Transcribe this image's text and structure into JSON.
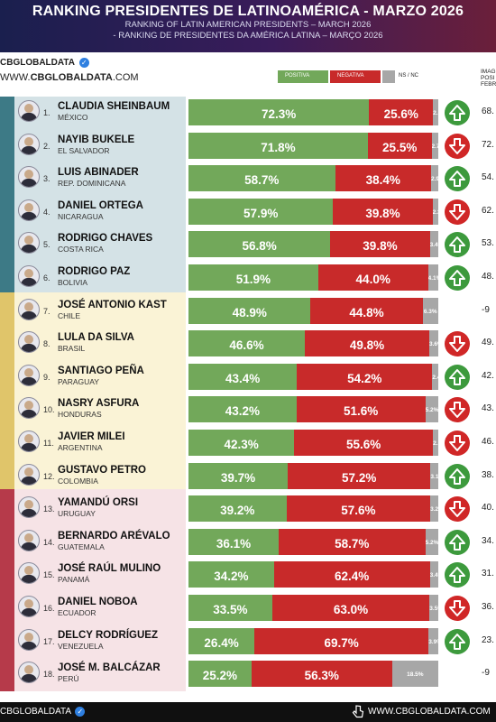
{
  "header": {
    "title": "RANKING PRESIDENTES DE LATINOAMÉRICA - MARZO 2026",
    "subtitle_en": "RANKING OF LATIN AMERICAN PRESIDENTS – MARCH 2026",
    "subtitle_pt": "- RANKING DE PRESIDENTES DA AMÉRICA LATINA – MARÇO 2026"
  },
  "brand": {
    "handle": "CBGLOBALDATA",
    "url_prefix": "WWW.",
    "url_bold": "CBGLOBALDATA",
    "url_suffix": ".COM"
  },
  "corner_label": "IMAG POSI FEBR",
  "footer": {
    "handle": "CBGLOBALDATA",
    "url": "WWW.CBGLOBALDATA.COM"
  },
  "colors": {
    "positive": "#72a85a",
    "negative": "#c82a2a",
    "ns": "#a7a7a7",
    "arrow_up": "#3d9a3d",
    "arrow_down": "#d02727",
    "group_top_bar": "#3d7a86",
    "group_top_bg": "#d4e2e6",
    "group_mid_bar": "#e0c56a",
    "group_mid_bg": "#faf3d6",
    "group_bot_bar": "#b63a4a",
    "group_bot_bg": "#f6e3e6"
  },
  "chart_data": {
    "type": "bar",
    "stacked": true,
    "orientation": "horizontal",
    "legend": {
      "position": "top-right",
      "entries": [
        "POSITIVA",
        "NEGATIVA",
        "NS / NC"
      ]
    },
    "rows": [
      {
        "rank": "1.",
        "name": "CLAUDIA SHEINBAUM",
        "country": "MÉXICO",
        "positive": 72.3,
        "negative": 25.6,
        "ns": 2.1,
        "positive_label": "72.3%",
        "negative_label": "25.6%",
        "ns_label": "2.1%",
        "trend": "up",
        "feb": "68."
      },
      {
        "rank": "2.",
        "name": "NAYIB BUKELE",
        "country": "EL SALVADOR",
        "positive": 71.8,
        "negative": 25.5,
        "ns": 2.7,
        "positive_label": "71.8%",
        "negative_label": "25.5%",
        "ns_label": "2.7%",
        "trend": "down",
        "feb": "72."
      },
      {
        "rank": "3.",
        "name": "LUIS ABINADER",
        "country": "REP. DOMINICANA",
        "positive": 58.7,
        "negative": 38.4,
        "ns": 2.9,
        "positive_label": "58.7%",
        "negative_label": "38.4%",
        "ns_label": "2.9%",
        "trend": "up",
        "feb": "54."
      },
      {
        "rank": "4.",
        "name": "DANIEL ORTEGA",
        "country": "NICARAGUA",
        "positive": 57.9,
        "negative": 39.8,
        "ns": 2.3,
        "positive_label": "57.9%",
        "negative_label": "39.8%",
        "ns_label": "2.3%",
        "trend": "down",
        "feb": "62."
      },
      {
        "rank": "5.",
        "name": "RODRIGO CHAVES",
        "country": "COSTA RICA",
        "positive": 56.8,
        "negative": 39.8,
        "ns": 3.4,
        "positive_label": "56.8%",
        "negative_label": "39.8%",
        "ns_label": "3.4%",
        "trend": "up",
        "feb": "53."
      },
      {
        "rank": "6.",
        "name": "RODRIGO PAZ",
        "country": "BOLIVIA",
        "positive": 51.9,
        "negative": 44.0,
        "ns": 4.1,
        "positive_label": "51.9%",
        "negative_label": "44.0%",
        "ns_label": "4.1%",
        "trend": "up",
        "feb": "48."
      },
      {
        "rank": "7.",
        "name": "JOSÉ ANTONIO KAST",
        "country": "CHILE",
        "positive": 48.9,
        "negative": 44.8,
        "ns": 6.3,
        "positive_label": "48.9%",
        "negative_label": "44.8%",
        "ns_label": "6.3%",
        "trend": "none",
        "feb": "-9"
      },
      {
        "rank": "8.",
        "name": "LULA DA SILVA",
        "country": "BRASIL",
        "positive": 46.6,
        "negative": 49.8,
        "ns": 3.6,
        "positive_label": "46.6%",
        "negative_label": "49.8%",
        "ns_label": "3.6%",
        "trend": "down",
        "feb": "49."
      },
      {
        "rank": "9.",
        "name": "SANTIAGO PEÑA",
        "country": "PARAGUAY",
        "positive": 43.4,
        "negative": 54.2,
        "ns": 2.4,
        "positive_label": "43.4%",
        "negative_label": "54.2%",
        "ns_label": "2.4%",
        "trend": "up",
        "feb": "42."
      },
      {
        "rank": "10.",
        "name": "NASRY ASFURA",
        "country": "HONDURAS",
        "positive": 43.2,
        "negative": 51.6,
        "ns": 5.2,
        "positive_label": "43.2%",
        "negative_label": "51.6%",
        "ns_label": "5.2%",
        "trend": "down",
        "feb": "43."
      },
      {
        "rank": "11.",
        "name": "JAVIER MILEI",
        "country": "ARGENTINA",
        "positive": 42.3,
        "negative": 55.6,
        "ns": 2.1,
        "positive_label": "42.3%",
        "negative_label": "55.6%",
        "ns_label": "2.1%",
        "trend": "down",
        "feb": "46."
      },
      {
        "rank": "12.",
        "name": "GUSTAVO PETRO",
        "country": "COLOMBIA",
        "positive": 39.7,
        "negative": 57.2,
        "ns": 3.1,
        "positive_label": "39.7%",
        "negative_label": "57.2%",
        "ns_label": "3.1%",
        "trend": "up",
        "feb": "38."
      },
      {
        "rank": "13.",
        "name": "YAMANDÚ ORSI",
        "country": "URUGUAY",
        "positive": 39.2,
        "negative": 57.6,
        "ns": 3.2,
        "positive_label": "39.2%",
        "negative_label": "57.6%",
        "ns_label": "3.2%",
        "trend": "down",
        "feb": "40."
      },
      {
        "rank": "14.",
        "name": "BERNARDO ARÉVALO",
        "country": "GUATEMALA",
        "positive": 36.1,
        "negative": 58.7,
        "ns": 5.2,
        "positive_label": "36.1%",
        "negative_label": "58.7%",
        "ns_label": "5.2%",
        "trend": "up",
        "feb": "34."
      },
      {
        "rank": "15.",
        "name": "JOSÉ RAÚL MULINO",
        "country": "PANAMÁ",
        "positive": 34.2,
        "negative": 62.4,
        "ns": 3.4,
        "positive_label": "34.2%",
        "negative_label": "62.4%",
        "ns_label": "3.4%",
        "trend": "up",
        "feb": "31."
      },
      {
        "rank": "16.",
        "name": "DANIEL NOBOA",
        "country": "ECUADOR",
        "positive": 33.5,
        "negative": 63.0,
        "ns": 3.5,
        "positive_label": "33.5%",
        "negative_label": "63.0%",
        "ns_label": "3.5%",
        "trend": "down",
        "feb": "36."
      },
      {
        "rank": "17.",
        "name": "DELCY RODRÍGUEZ",
        "country": "VENEZUELA",
        "positive": 26.4,
        "negative": 69.7,
        "ns": 3.9,
        "positive_label": "26.4%",
        "negative_label": "69.7%",
        "ns_label": "3.9%",
        "trend": "up",
        "feb": "23."
      },
      {
        "rank": "18.",
        "name": "JOSÉ M. BALCÁZAR",
        "country": "PERÚ",
        "positive": 25.2,
        "negative": 56.3,
        "ns": 18.5,
        "positive_label": "25.2%",
        "negative_label": "56.3%",
        "ns_label": "18.5%",
        "trend": "none",
        "feb": "-9"
      }
    ]
  }
}
